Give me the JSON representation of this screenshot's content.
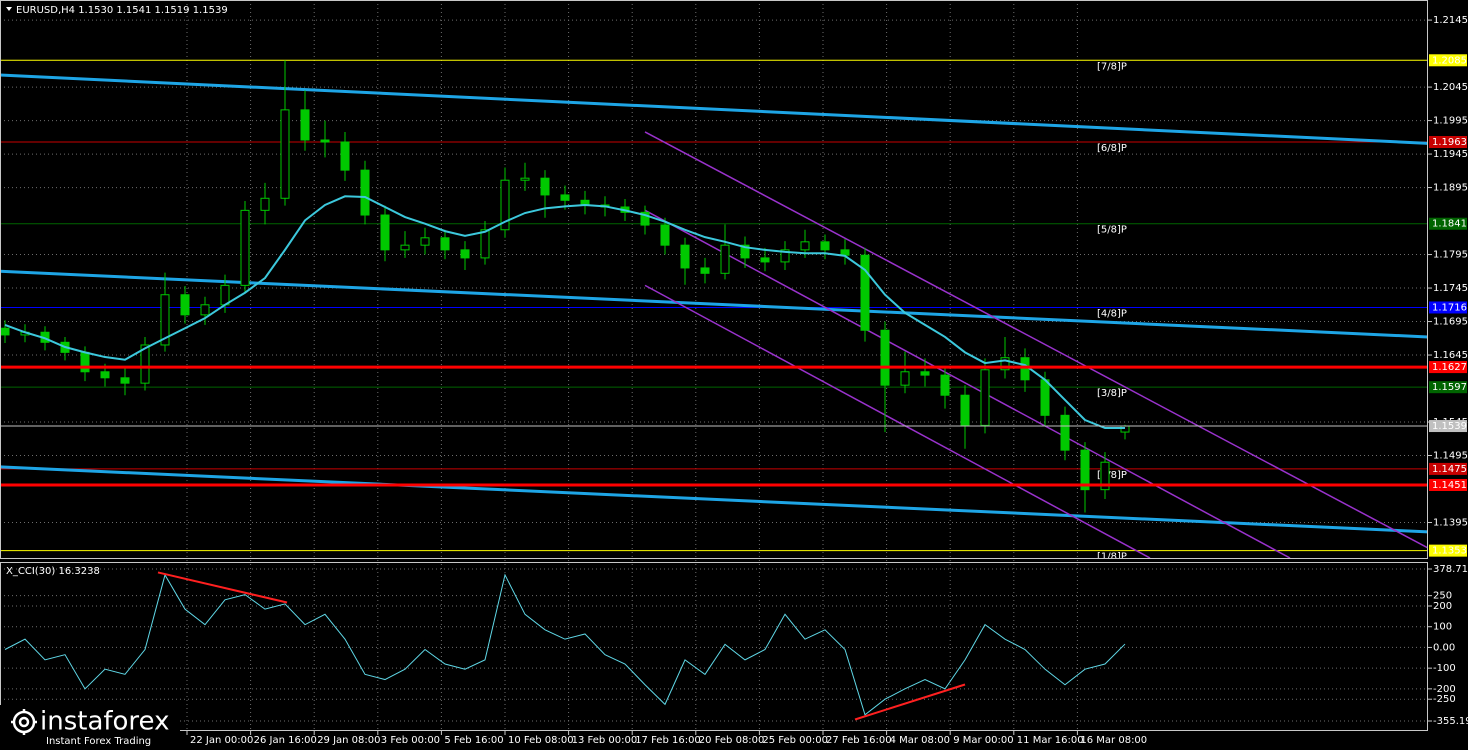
{
  "chart_data": [
    {
      "type": "candlestick",
      "title": "EURUSD,H4  1.1530 1.1541 1.1519 1.1539",
      "xlim": [
        -0.25,
        71.15
      ],
      "ylim": [
        1.1342,
        1.2175
      ],
      "yticks": [
        1.2145,
        1.2045,
        1.1995,
        1.1945,
        1.1895,
        1.1795,
        1.1745,
        1.1695,
        1.1645,
        1.1545,
        1.1495,
        1.1395
      ],
      "xticks": [
        {
          "value": 9.1,
          "label": "22 Jan 00:00"
        },
        {
          "value": 12.28,
          "label": "26 Jan 16:00"
        },
        {
          "value": 15.46,
          "label": "29 Jan 08:00"
        },
        {
          "value": 18.64,
          "label": "3 Feb 00:00"
        },
        {
          "value": 21.82,
          "label": "5 Feb 16:00"
        },
        {
          "value": 25.0,
          "label": "10 Feb 08:00"
        },
        {
          "value": 28.18,
          "label": "13 Feb 00:00"
        },
        {
          "value": 31.36,
          "label": "17 Feb 16:00"
        },
        {
          "value": 34.54,
          "label": "20 Feb 08:00"
        },
        {
          "value": 37.72,
          "label": "25 Feb 00:00"
        },
        {
          "value": 40.9,
          "label": "27 Feb 16:00"
        },
        {
          "value": 44.08,
          "label": "4 Mar 08:00"
        },
        {
          "value": 47.26,
          "label": "9 Mar 00:00"
        },
        {
          "value": 50.44,
          "label": "11 Mar 16:00"
        },
        {
          "value": 53.62,
          "label": "16 Mar 08:00"
        }
      ],
      "grid": true,
      "color": "#00c800",
      "open": [
        1.1685,
        1.1675,
        1.1679,
        1.1664,
        1.1649,
        1.162,
        1.1611,
        1.1603,
        1.166,
        1.1735,
        1.1705,
        1.172,
        1.1749,
        1.1861,
        1.1879,
        1.2011,
        1.1966,
        1.1963,
        1.1921,
        1.1854,
        1.1802,
        1.1809,
        1.182,
        1.1802,
        1.179,
        1.1832,
        1.1906,
        1.1909,
        1.1884,
        1.1876,
        1.1869,
        1.1866,
        1.1858,
        1.1839,
        1.1809,
        1.1775,
        1.1767,
        1.1809,
        1.179,
        1.1784,
        1.1802,
        1.1814,
        1.1802,
        1.1794,
        1.1682,
        1.16,
        1.162,
        1.1615,
        1.1585,
        1.154,
        1.1623,
        1.1641,
        1.1608,
        1.1555,
        1.1503,
        1.1444,
        1.153
      ],
      "high": [
        1.1697,
        1.1691,
        1.1688,
        1.1672,
        1.1658,
        1.1632,
        1.1625,
        1.1672,
        1.1768,
        1.1748,
        1.1732,
        1.1765,
        1.1875,
        1.1902,
        1.2085,
        1.204,
        1.1995,
        1.1978,
        1.1935,
        1.1868,
        1.183,
        1.1835,
        1.1832,
        1.1815,
        1.1845,
        1.1925,
        1.1932,
        1.1921,
        1.1898,
        1.189,
        1.1882,
        1.1878,
        1.1868,
        1.185,
        1.182,
        1.179,
        1.184,
        1.1822,
        1.1805,
        1.1815,
        1.1832,
        1.1825,
        1.1818,
        1.1805,
        1.1695,
        1.165,
        1.164,
        1.1628,
        1.16,
        1.164,
        1.1672,
        1.1655,
        1.162,
        1.1568,
        1.1515,
        1.15,
        1.1541
      ],
      "low": [
        1.1663,
        1.1664,
        1.1652,
        1.1637,
        1.1606,
        1.1598,
        1.1585,
        1.1592,
        1.165,
        1.1692,
        1.169,
        1.1708,
        1.1738,
        1.184,
        1.1868,
        1.195,
        1.194,
        1.1905,
        1.184,
        1.1785,
        1.179,
        1.1795,
        1.1788,
        1.1772,
        1.178,
        1.182,
        1.189,
        1.185,
        1.1862,
        1.1855,
        1.1852,
        1.1845,
        1.1825,
        1.1795,
        1.175,
        1.1752,
        1.1758,
        1.1775,
        1.177,
        1.1772,
        1.179,
        1.1788,
        1.178,
        1.1665,
        1.153,
        1.1588,
        1.1598,
        1.1565,
        1.1505,
        1.1528,
        1.161,
        1.159,
        1.154,
        1.1488,
        1.141,
        1.143,
        1.1519
      ],
      "close": [
        1.1675,
        1.1679,
        1.1664,
        1.1649,
        1.162,
        1.1611,
        1.1603,
        1.166,
        1.1735,
        1.1705,
        1.172,
        1.1749,
        1.1861,
        1.1879,
        1.2011,
        1.1966,
        1.1963,
        1.1921,
        1.1854,
        1.1802,
        1.1809,
        1.182,
        1.1802,
        1.179,
        1.1832,
        1.1906,
        1.1909,
        1.1884,
        1.1876,
        1.1869,
        1.1866,
        1.1858,
        1.1839,
        1.1809,
        1.1775,
        1.1767,
        1.1809,
        1.179,
        1.1784,
        1.1802,
        1.1814,
        1.1802,
        1.1794,
        1.1682,
        1.16,
        1.162,
        1.1615,
        1.1585,
        1.154,
        1.1623,
        1.1641,
        1.1608,
        1.1555,
        1.1503,
        1.1444,
        1.1485,
        1.1539
      ],
      "moving_average": {
        "color": "#3cc8dc",
        "values": [
          1.169,
          1.1679,
          1.167,
          1.1657,
          1.1649,
          1.1642,
          1.1638,
          1.1655,
          1.167,
          1.1685,
          1.17,
          1.172,
          1.1738,
          1.176,
          1.1802,
          1.1846,
          1.1869,
          1.1882,
          1.1881,
          1.1866,
          1.1851,
          1.1841,
          1.183,
          1.1823,
          1.1829,
          1.1844,
          1.1857,
          1.1864,
          1.1867,
          1.1869,
          1.1867,
          1.1861,
          1.1854,
          1.1844,
          1.1832,
          1.1821,
          1.1814,
          1.1806,
          1.1802,
          1.1799,
          1.1797,
          1.1797,
          1.1793,
          1.1772,
          1.1735,
          1.1708,
          1.169,
          1.1672,
          1.1649,
          1.1633,
          1.1637,
          1.163,
          1.1608,
          1.1578,
          1.1548,
          1.1536,
          1.1536
        ]
      },
      "trend_lines": [
        {
          "color": "#1ea5e6",
          "x": [
            -0.25,
            71.15
          ],
          "values": [
            1.2063,
            1.1961
          ]
        },
        {
          "color": "#1ea5e6",
          "x": [
            -0.25,
            71.15
          ],
          "values": [
            1.177,
            1.1672
          ]
        },
        {
          "color": "#1ea5e6",
          "x": [
            -0.25,
            71.15
          ],
          "values": [
            1.1478,
            1.1381
          ]
        },
        {
          "color": "#9932cc",
          "x": [
            32.0,
            71.15
          ],
          "values": [
            1.1978,
            1.1357
          ]
        },
        {
          "color": "#9932cc",
          "x": [
            32.0,
            64.25
          ],
          "values": [
            1.1861,
            1.1342
          ]
        },
        {
          "color": "#9932cc",
          "x": [
            32.0,
            57.25
          ],
          "values": [
            1.1749,
            1.1342
          ]
        }
      ],
      "murrey_levels": [
        {
          "value": 1.2085,
          "label": "[7/8]P",
          "color": "#ffff00",
          "text_color": "#000000"
        },
        {
          "value": 1.1963,
          "label": "[6/8]P",
          "color": "#c80000",
          "text_color": "#ffffff"
        },
        {
          "value": 1.1841,
          "label": "[5/8]P",
          "color": "#006400",
          "text_color": "#ffffff"
        },
        {
          "value": 1.1716,
          "label": "[4/8]P",
          "color": "#0000ff",
          "text_color": "#ffffff"
        },
        {
          "value": 1.1597,
          "label": "[3/8]P",
          "color": "#006400",
          "text_color": "#ffffff"
        },
        {
          "value": 1.1475,
          "label": "[2/8]P",
          "color": "#c80000",
          "text_color": "#ffffff"
        },
        {
          "value": 1.1353,
          "label": "[1/8]P",
          "color": "#ffff00",
          "text_color": "#000000"
        }
      ],
      "sr_levels": [
        {
          "value": 1.1627,
          "color": "#ff0000",
          "text_color": "#ffffff"
        },
        {
          "value": 1.1451,
          "color": "#ff0000",
          "text_color": "#ffffff"
        }
      ],
      "current_price": {
        "value": 1.1539,
        "color": "#c0c0c0",
        "text_color": "#000000"
      }
    },
    {
      "type": "line",
      "title": "X_CCI(30) 16.3238",
      "xlim": [
        -0.25,
        71.15
      ],
      "ylim": [
        -355.1984,
        378.7116
      ],
      "yticks": [
        378.7116,
        250,
        200,
        100,
        {
          "value": 0,
          "label": "0.00"
        },
        -100,
        -200,
        -250,
        -355.1984
      ],
      "color": "#5fd7e6",
      "values": [
        -10,
        40,
        -60,
        -35,
        -200,
        -105,
        -130,
        -10,
        350,
        185,
        110,
        230,
        255,
        185,
        210,
        110,
        160,
        40,
        -130,
        -155,
        -105,
        -10,
        -80,
        -105,
        -60,
        350,
        160,
        85,
        40,
        65,
        -35,
        -80,
        -180,
        -275,
        -60,
        -130,
        15,
        -60,
        -10,
        160,
        40,
        85,
        -10,
        -325,
        -250,
        -200,
        -155,
        -200,
        -60,
        110,
        40,
        -10,
        -105,
        -180,
        -105,
        -80,
        16.3238
      ],
      "divergence_lines": [
        {
          "color": "#ff2020",
          "x": [
            7.65,
            14.1
          ],
          "values": [
            362,
            217
          ]
        },
        {
          "color": "#ff2020",
          "x": [
            42.5,
            48.0
          ],
          "values": [
            -348,
            -179
          ]
        }
      ]
    }
  ],
  "watermark": {
    "brand": "instaforex",
    "tagline": "Instant Forex Trading"
  }
}
